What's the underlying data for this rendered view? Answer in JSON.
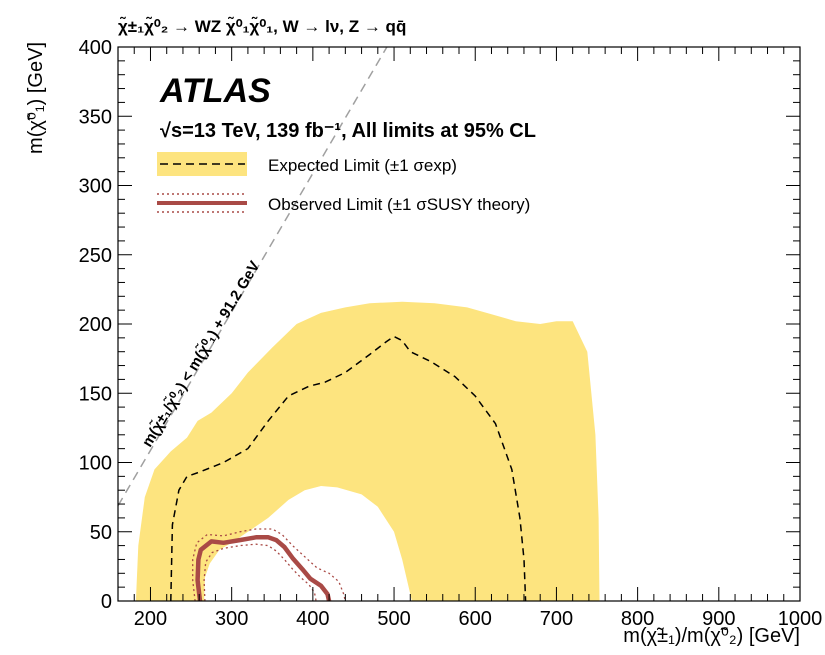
{
  "chart_data": {
    "type": "line",
    "process_header": "χ̃±₁χ̃⁰₂ → WZ χ̃⁰₁χ̃⁰₁, W → lν, Z → qq̄",
    "experiment": "ATLAS",
    "energy_lumi": "√s=13 TeV, 139 fb⁻¹, All limits at 95% CL",
    "xlabel": "m(χ̃±₁)/m(χ̃⁰₂) [GeV]",
    "ylabel": "m(χ̃⁰₁) [GeV]",
    "xlim": [
      160,
      1000
    ],
    "ylim": [
      0,
      400
    ],
    "x_ticks": [
      200,
      300,
      400,
      500,
      600,
      700,
      800,
      900,
      1000
    ],
    "y_ticks": [
      0,
      50,
      100,
      150,
      200,
      250,
      300,
      350,
      400
    ],
    "x_tick_labels": [
      "200",
      "300",
      "400",
      "500",
      "600",
      "700",
      "800",
      "900",
      "1000"
    ],
    "y_tick_labels": [
      "0",
      "50",
      "100",
      "150",
      "200",
      "250",
      "300",
      "350",
      "400"
    ],
    "kinematic_line_label": "m(χ̃±₁/χ̃⁰₂) < m(χ̃⁰₁) + 91.2 GeV",
    "kinematic_line": [
      [
        160,
        68.8
      ],
      [
        491.2,
        400
      ]
    ],
    "legend": {
      "placement": "top-left",
      "expected": "Expected Limit (±1 σexp)",
      "observed": "Observed Limit (±1 σSUSY theory)"
    },
    "colors": {
      "band": "#fde47f",
      "observed": "#a94a46",
      "kinematic": "#a0a0a0",
      "expected": "#000000"
    },
    "series": [
      {
        "name": "Expected Limit",
        "style": "dashed",
        "points": [
          [
            225,
            0
          ],
          [
            227,
            55
          ],
          [
            235,
            80
          ],
          [
            245,
            90
          ],
          [
            260,
            93
          ],
          [
            290,
            100
          ],
          [
            320,
            110
          ],
          [
            345,
            130
          ],
          [
            370,
            148
          ],
          [
            395,
            155
          ],
          [
            415,
            158
          ],
          [
            440,
            165
          ],
          [
            470,
            178
          ],
          [
            490,
            187
          ],
          [
            500,
            191
          ],
          [
            510,
            188
          ],
          [
            520,
            180
          ],
          [
            545,
            173
          ],
          [
            575,
            162
          ],
          [
            600,
            148
          ],
          [
            625,
            128
          ],
          [
            645,
            95
          ],
          [
            655,
            60
          ],
          [
            660,
            30
          ],
          [
            662,
            0
          ]
        ]
      },
      {
        "name": "Expected ±1σ band",
        "style": "band",
        "points": [
          [
            182,
            0
          ],
          [
            185,
            40
          ],
          [
            193,
            75
          ],
          [
            205,
            95
          ],
          [
            225,
            108
          ],
          [
            245,
            118
          ],
          [
            258,
            130
          ],
          [
            275,
            136
          ],
          [
            300,
            150
          ],
          [
            320,
            165
          ],
          [
            350,
            183
          ],
          [
            380,
            200
          ],
          [
            410,
            208
          ],
          [
            440,
            212
          ],
          [
            470,
            215
          ],
          [
            510,
            216
          ],
          [
            550,
            215
          ],
          [
            590,
            212
          ],
          [
            620,
            207
          ],
          [
            650,
            202
          ],
          [
            680,
            200
          ],
          [
            700,
            202
          ],
          [
            720,
            202
          ],
          [
            738,
            180
          ],
          [
            748,
            120
          ],
          [
            752,
            60
          ],
          [
            753,
            0
          ],
          [
            522,
            0
          ],
          [
            510,
            30
          ],
          [
            500,
            50
          ],
          [
            480,
            68
          ],
          [
            460,
            77
          ],
          [
            430,
            82
          ],
          [
            410,
            83
          ],
          [
            390,
            80
          ],
          [
            370,
            73
          ],
          [
            345,
            60
          ],
          [
            320,
            50
          ],
          [
            300,
            42
          ],
          [
            285,
            37
          ],
          [
            273,
            27
          ],
          [
            267,
            17
          ],
          [
            266,
            0
          ]
        ]
      },
      {
        "name": "Observed Limit",
        "style": "solid",
        "points": [
          [
            261,
            0
          ],
          [
            258,
            15
          ],
          [
            259,
            30
          ],
          [
            262,
            37
          ],
          [
            275,
            43
          ],
          [
            290,
            42
          ],
          [
            310,
            44
          ],
          [
            330,
            46
          ],
          [
            345,
            46
          ],
          [
            355,
            44
          ],
          [
            365,
            39
          ],
          [
            375,
            31
          ],
          [
            387,
            23
          ],
          [
            397,
            16
          ],
          [
            410,
            11
          ],
          [
            418,
            5
          ],
          [
            420,
            0
          ]
        ]
      },
      {
        "name": "Observed +1σ theory",
        "style": "dotted",
        "points": [
          [
            255,
            0
          ],
          [
            252,
            15
          ],
          [
            252,
            30
          ],
          [
            257,
            42
          ],
          [
            270,
            48
          ],
          [
            290,
            47
          ],
          [
            310,
            50
          ],
          [
            330,
            52
          ],
          [
            350,
            52
          ],
          [
            362,
            48
          ],
          [
            375,
            40
          ],
          [
            390,
            32
          ],
          [
            405,
            24
          ],
          [
            420,
            20
          ],
          [
            432,
            14
          ],
          [
            438,
            5
          ],
          [
            440,
            0
          ]
        ]
      },
      {
        "name": "Observed −1σ theory",
        "style": "dotted",
        "points": [
          [
            267,
            0
          ],
          [
            266,
            15
          ],
          [
            268,
            28
          ],
          [
            276,
            35
          ],
          [
            290,
            38
          ],
          [
            310,
            40
          ],
          [
            330,
            41
          ],
          [
            345,
            40
          ],
          [
            355,
            36
          ],
          [
            365,
            30
          ],
          [
            375,
            23
          ],
          [
            385,
            17
          ],
          [
            395,
            12
          ],
          [
            402,
            6
          ],
          [
            404,
            0
          ]
        ]
      }
    ]
  }
}
